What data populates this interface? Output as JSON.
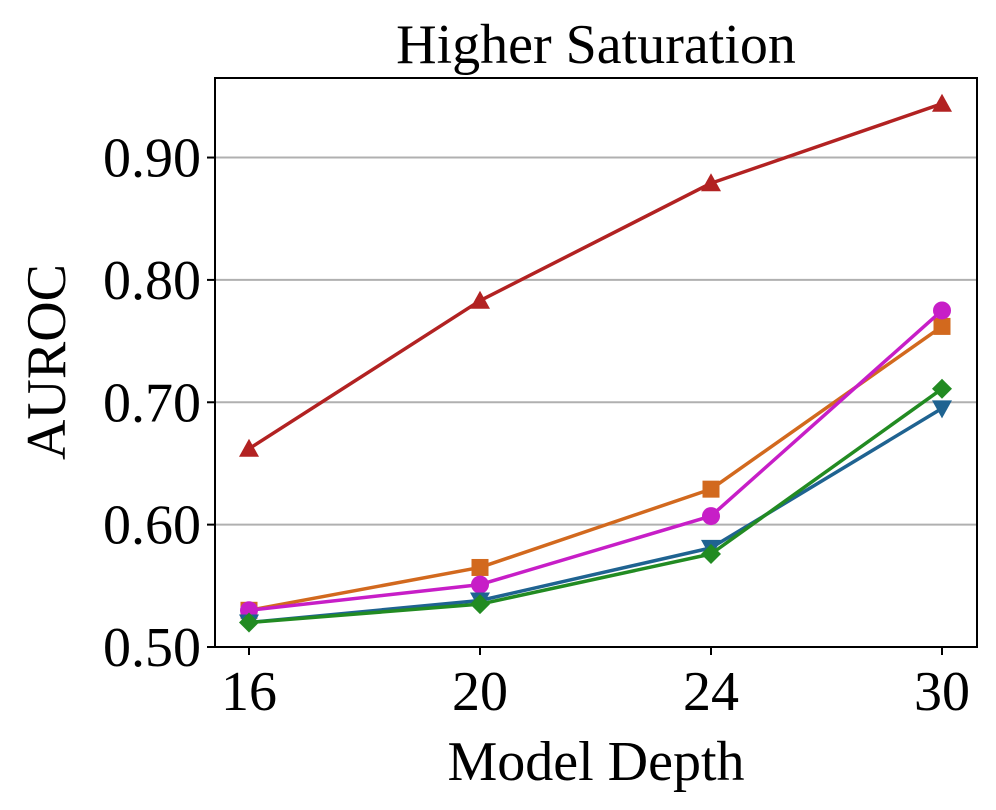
{
  "chart_data": {
    "type": "line",
    "title": "Higher Saturation",
    "xlabel": "Model Depth",
    "ylabel": "AUROC",
    "categories": [
      "16",
      "20",
      "24",
      "30"
    ],
    "yticks": [
      "0.50",
      "0.60",
      "0.70",
      "0.80",
      "0.90"
    ],
    "ylim": [
      0.5,
      0.965
    ],
    "grid": "horizontal",
    "series": [
      {
        "color": "#b22222",
        "marker": "triangle-up",
        "values": [
          0.662,
          0.783,
          0.879,
          0.944
        ]
      },
      {
        "color": "#d2691e",
        "marker": "square",
        "values": [
          0.53,
          0.565,
          0.629,
          0.762
        ]
      },
      {
        "color": "#c71ec7",
        "marker": "circle",
        "values": [
          0.53,
          0.551,
          0.607,
          0.775
        ]
      },
      {
        "color": "#1f6391",
        "marker": "triangle-down",
        "values": [
          0.52,
          0.538,
          0.581,
          0.695
        ]
      },
      {
        "color": "#228b22",
        "marker": "diamond",
        "values": [
          0.52,
          0.535,
          0.576,
          0.711
        ]
      }
    ]
  }
}
